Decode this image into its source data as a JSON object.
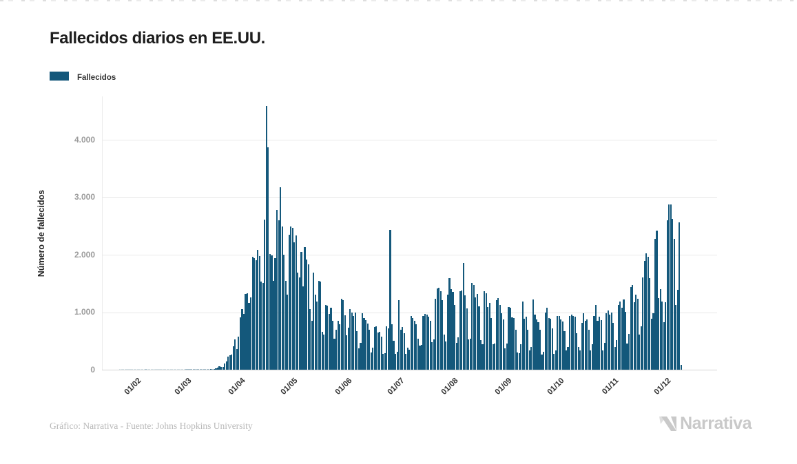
{
  "header": {
    "title": "Fallecidos diarios en EE.UU."
  },
  "footer": {
    "credits": "Gráfico: Narrativa - Fuente: Johns Hopkins University",
    "brand": "Narrativa"
  },
  "colors": {
    "bar": "#14587b",
    "grid": "#e8e8e8",
    "axis_line": "#d2d2d2",
    "ytick_text": "#9b9b9b",
    "xtick_text": "#333333",
    "title_text": "#1d1d1d",
    "credits_text": "#b9b9b9",
    "brand_text": "#c9c9c9"
  },
  "chart_data": {
    "type": "bar",
    "title": "Fallecidos diarios en EE.UU.",
    "xlabel": "",
    "ylabel": "Número de fallecidos",
    "ylim": [
      0,
      4766
    ],
    "grid": "horizontal",
    "legend_position": "top-left",
    "series": [
      {
        "name": "Fallecidos",
        "color": "#14587b"
      }
    ],
    "yticks": [
      {
        "value": 0,
        "label": "0"
      },
      {
        "value": 1000,
        "label": "1.000"
      },
      {
        "value": 2000,
        "label": "2.000"
      },
      {
        "value": 3000,
        "label": "3.000"
      },
      {
        "value": 4000,
        "label": "4.000"
      }
    ],
    "xticks": [
      {
        "day": 20,
        "label": "01/02"
      },
      {
        "day": 49,
        "label": "01/03"
      },
      {
        "day": 80,
        "label": "01/04"
      },
      {
        "day": 110,
        "label": "01/05"
      },
      {
        "day": 141,
        "label": "01/06"
      },
      {
        "day": 171,
        "label": "01/07"
      },
      {
        "day": 202,
        "label": "01/08"
      },
      {
        "day": 233,
        "label": "01/09"
      },
      {
        "day": 263,
        "label": "01/10"
      },
      {
        "day": 294,
        "label": "01/11"
      },
      {
        "day": 324,
        "label": "01/12"
      }
    ],
    "start_day_offset": 10,
    "domain_days": 353,
    "values": [
      0,
      0,
      0,
      0,
      0,
      0,
      0,
      0,
      0,
      0,
      0,
      0,
      0,
      0,
      0,
      1,
      0,
      0,
      0,
      0,
      0,
      0,
      0,
      0,
      0,
      0,
      0,
      0,
      0,
      0,
      0,
      0,
      0,
      0,
      0,
      0,
      0,
      0,
      1,
      1,
      5,
      3,
      2,
      1,
      3,
      4,
      3,
      4,
      4,
      8,
      3,
      8,
      12,
      11,
      18,
      23,
      41,
      57,
      49,
      46,
      111,
      140,
      225,
      247,
      268,
      411,
      525,
      363,
      573,
      912,
      1059,
      968,
      1321,
      1331,
      1165,
      1255,
      1970,
      1940,
      1900,
      2087,
      1980,
      1528,
      1509,
      2608,
      4591,
      3870,
      2015,
      1990,
      1550,
      1940,
      2780,
      2600,
      3179,
      2495,
      2000,
      1550,
      1300,
      2350,
      2490,
      2470,
      2210,
      2330,
      1690,
      1610,
      2050,
      1450,
      2130,
      1915,
      1830,
      1050,
      855,
      1690,
      1310,
      1190,
      1550,
      1530,
      655,
      615,
      1130,
      1115,
      975,
      1075,
      855,
      535,
      695,
      855,
      795,
      1230,
      1215,
      950,
      600,
      730,
      1050,
      990,
      930,
      1000,
      670,
      370,
      470,
      980,
      900,
      860,
      800,
      690,
      300,
      380,
      740,
      760,
      650,
      660,
      580,
      270,
      290,
      750,
      720,
      2437,
      795,
      500,
      270,
      310,
      1215,
      690,
      740,
      630,
      270,
      380,
      350,
      935,
      895,
      855,
      795,
      535,
      420,
      430,
      940,
      970,
      960,
      920,
      850,
      480,
      530,
      1230,
      1410,
      1430,
      1370,
      1215,
      615,
      495,
      1300,
      1590,
      1400,
      1350,
      1130,
      470,
      560,
      1360,
      1380,
      1860,
      1290,
      1060,
      530,
      540,
      1510,
      1470,
      1260,
      1320,
      1100,
      510,
      440,
      1360,
      1330,
      1090,
      1160,
      900,
      440,
      450,
      1210,
      1240,
      1130,
      980,
      870,
      370,
      450,
      1090,
      1080,
      910,
      900,
      700,
      300,
      290,
      440,
      1180,
      890,
      920,
      690,
      330,
      400,
      1220,
      960,
      870,
      830,
      690,
      260,
      310,
      1000,
      1080,
      900,
      890,
      720,
      270,
      330,
      940,
      930,
      880,
      840,
      670,
      330,
      400,
      940,
      960,
      930,
      920,
      640,
      390,
      330,
      820,
      980,
      850,
      880,
      690,
      340,
      440,
      930,
      1130,
      850,
      920,
      860,
      340,
      470,
      980,
      1030,
      960,
      990,
      820,
      400,
      510,
      1130,
      1190,
      1080,
      1220,
      1010,
      460,
      620,
      1440,
      1470,
      1170,
      1300,
      1230,
      610,
      750,
      1610,
      1890,
      2020,
      1960,
      1590,
      890,
      980,
      2270,
      2420,
      1250,
      1400,
      1180,
      830,
      1170,
      2600,
      2880,
      2870,
      2620,
      2270,
      1130,
      1390,
      2560,
      80
    ]
  }
}
